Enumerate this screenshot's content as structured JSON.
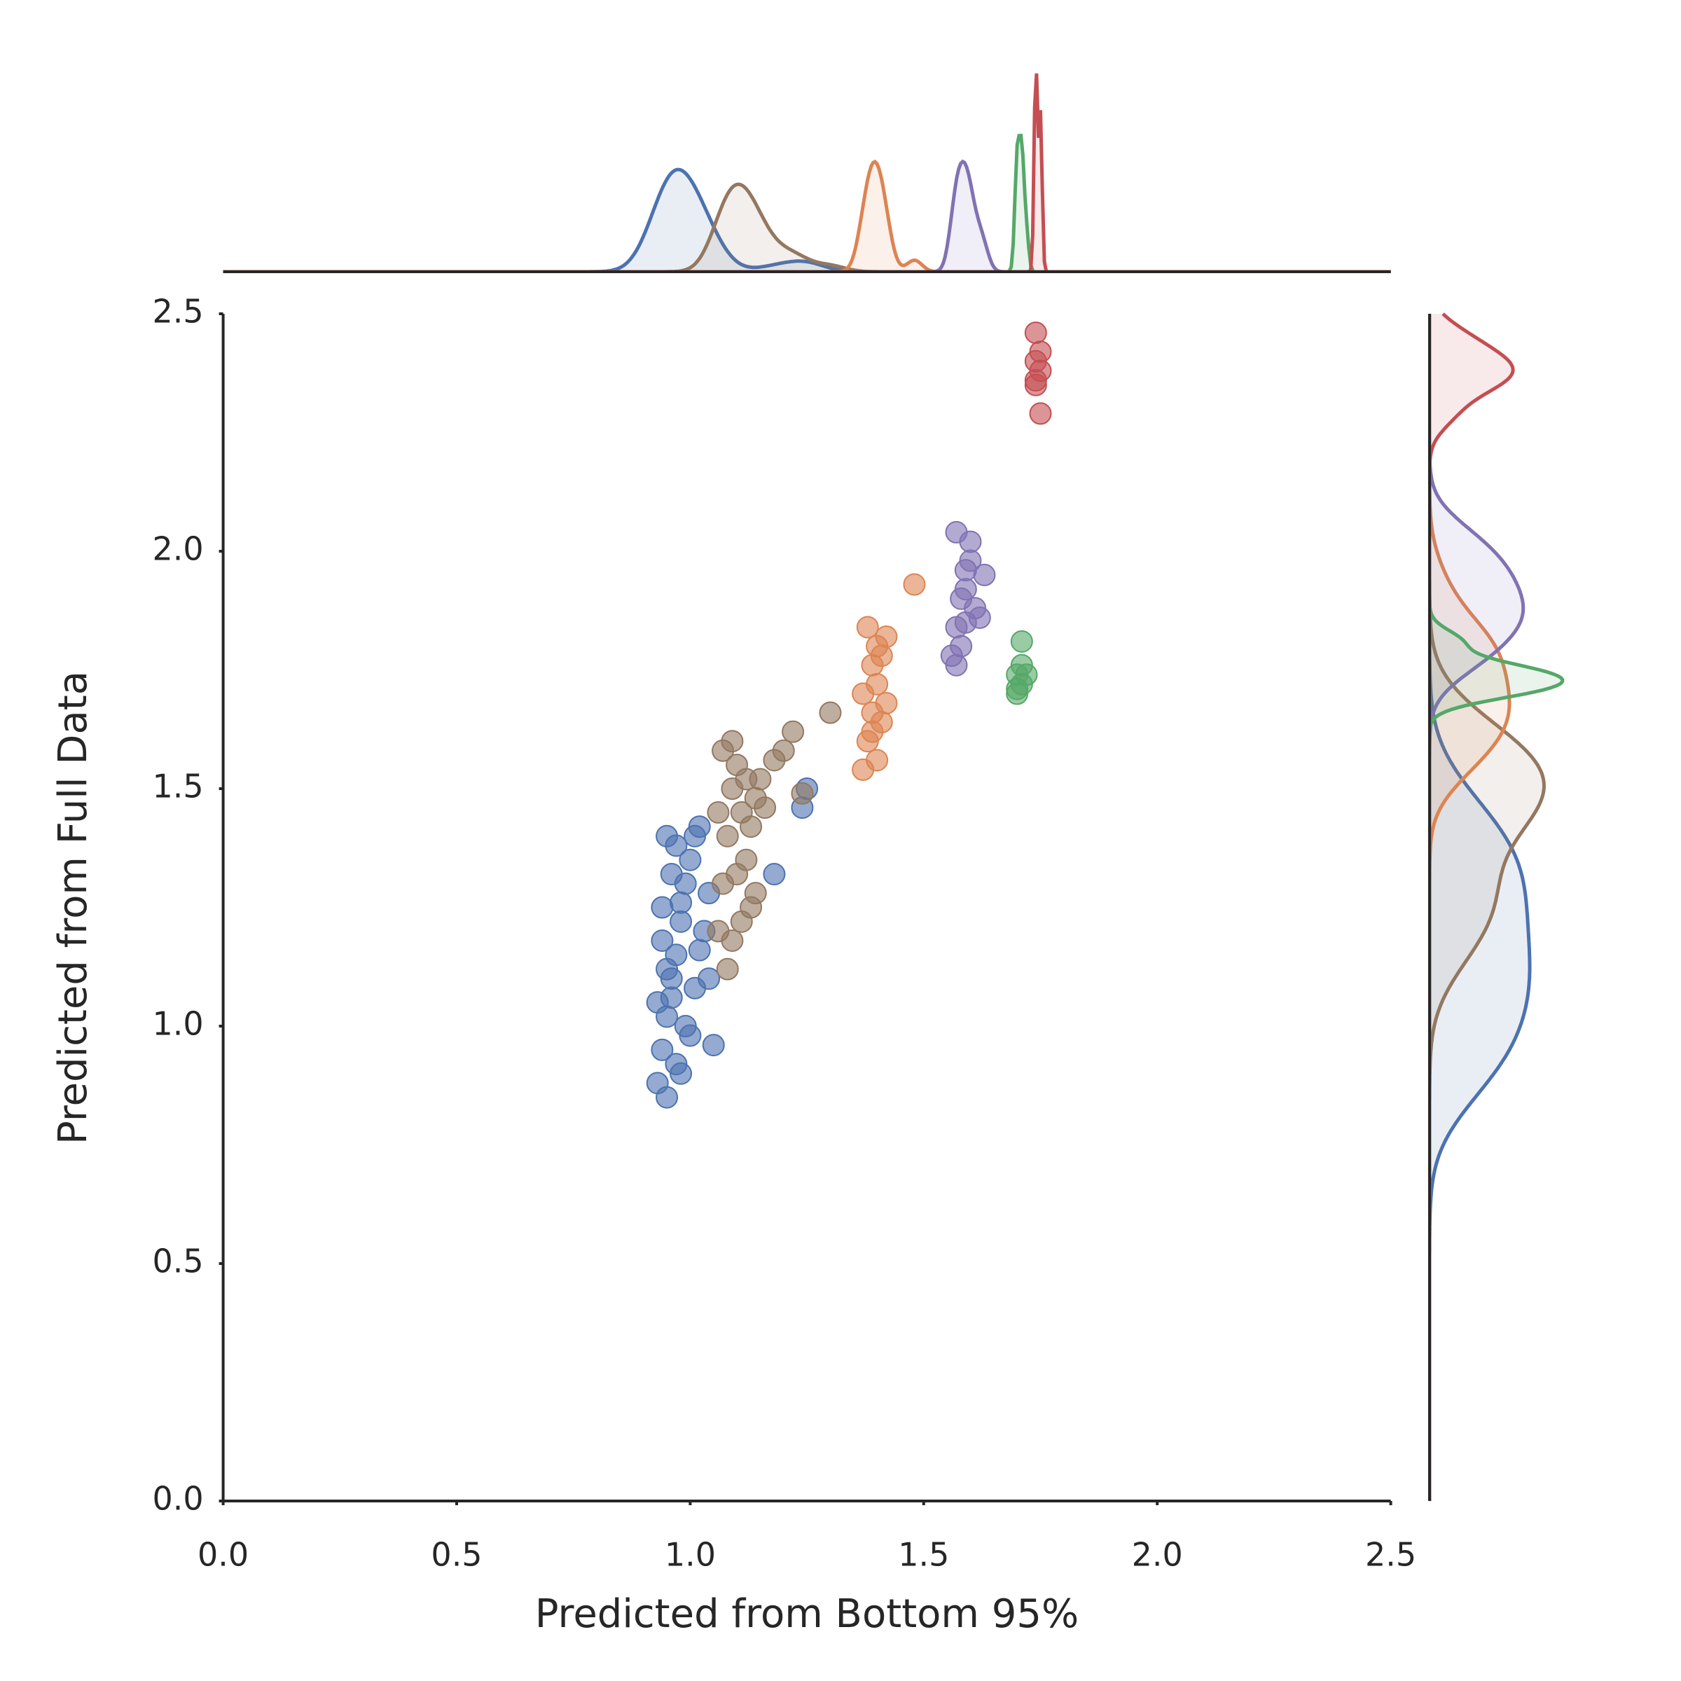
{
  "chart_data": {
    "type": "scatter",
    "x_label": "Predicted from Bottom 95%",
    "y_label": "Predicted from Full Data",
    "xlim": [
      0,
      2.5
    ],
    "ylim": [
      0,
      2.5
    ],
    "xticks": [
      {
        "value": 0,
        "label": "0.0"
      },
      {
        "value": 0.5,
        "label": "0.5"
      },
      {
        "value": 1,
        "label": "1.0"
      },
      {
        "value": 1.5,
        "label": "1.5"
      },
      {
        "value": 2,
        "label": "2.0"
      },
      {
        "value": 2.5,
        "label": "2.5"
      }
    ],
    "yticks": [
      {
        "value": 0,
        "label": "0.0"
      },
      {
        "value": 0.5,
        "label": "0.5"
      },
      {
        "value": 1,
        "label": "1.0"
      },
      {
        "value": 1.5,
        "label": "1.5"
      },
      {
        "value": 2,
        "label": "2.0"
      },
      {
        "value": 2.5,
        "label": "2.5"
      }
    ],
    "grid": false,
    "marginals": true,
    "series": [
      {
        "color": "#4c72b0",
        "x": [
          0.93,
          0.94,
          0.95,
          0.96,
          0.97,
          0.98,
          0.99,
          1.0,
          1.01,
          1.02,
          0.93,
          0.95,
          0.97,
          0.99,
          1.01,
          1.03,
          1.04,
          0.94,
          0.96,
          0.98,
          1.0,
          1.02,
          0.95,
          0.97,
          0.94,
          0.96,
          0.98,
          1.05,
          0.95,
          1.04,
          1.18,
          1.24,
          1.25
        ],
        "y": [
          0.88,
          0.95,
          1.02,
          1.1,
          1.15,
          1.22,
          1.3,
          1.35,
          1.4,
          1.42,
          1.05,
          1.12,
          0.92,
          1.0,
          1.08,
          1.2,
          1.28,
          1.25,
          1.32,
          0.9,
          0.98,
          1.16,
          0.85,
          1.38,
          1.18,
          1.06,
          1.26,
          0.96,
          1.4,
          1.1,
          1.32,
          1.46,
          1.5
        ]
      },
      {
        "color": "#937860",
        "x": [
          1.06,
          1.07,
          1.08,
          1.09,
          1.1,
          1.11,
          1.12,
          1.13,
          1.14,
          1.15,
          1.07,
          1.09,
          1.11,
          1.13,
          1.08,
          1.1,
          1.12,
          1.16,
          1.18,
          1.2,
          1.22,
          1.24,
          1.3,
          1.09,
          1.06,
          1.14
        ],
        "y": [
          1.2,
          1.3,
          1.4,
          1.5,
          1.55,
          1.45,
          1.35,
          1.25,
          1.48,
          1.52,
          1.58,
          1.6,
          1.22,
          1.42,
          1.12,
          1.32,
          1.52,
          1.46,
          1.56,
          1.58,
          1.62,
          1.49,
          1.66,
          1.18,
          1.45,
          1.28
        ]
      },
      {
        "color": "#dd8452",
        "x": [
          1.37,
          1.38,
          1.39,
          1.4,
          1.41,
          1.42,
          1.38,
          1.4,
          1.39,
          1.41,
          1.37,
          1.4,
          1.42,
          1.39,
          1.48
        ],
        "y": [
          1.54,
          1.6,
          1.66,
          1.72,
          1.78,
          1.82,
          1.84,
          1.56,
          1.76,
          1.64,
          1.7,
          1.8,
          1.68,
          1.62,
          1.93
        ]
      },
      {
        "color": "#8172b3",
        "x": [
          1.56,
          1.57,
          1.58,
          1.59,
          1.6,
          1.61,
          1.62,
          1.57,
          1.58,
          1.59,
          1.6,
          1.63,
          1.57,
          1.59
        ],
        "y": [
          1.78,
          1.84,
          1.9,
          1.96,
          2.02,
          1.88,
          1.86,
          2.04,
          1.8,
          1.92,
          1.98,
          1.95,
          1.76,
          1.85
        ]
      },
      {
        "color": "#55a868",
        "x": [
          1.7,
          1.71,
          1.7,
          1.71,
          1.72,
          1.71,
          1.7
        ],
        "y": [
          1.7,
          1.72,
          1.74,
          1.76,
          1.74,
          1.81,
          1.71
        ]
      },
      {
        "color": "#c44e52",
        "x": [
          1.74,
          1.75,
          1.74,
          1.75,
          1.74,
          1.75,
          1.74
        ],
        "y": [
          2.36,
          2.38,
          2.4,
          2.42,
          2.46,
          2.29,
          2.35
        ]
      }
    ]
  }
}
